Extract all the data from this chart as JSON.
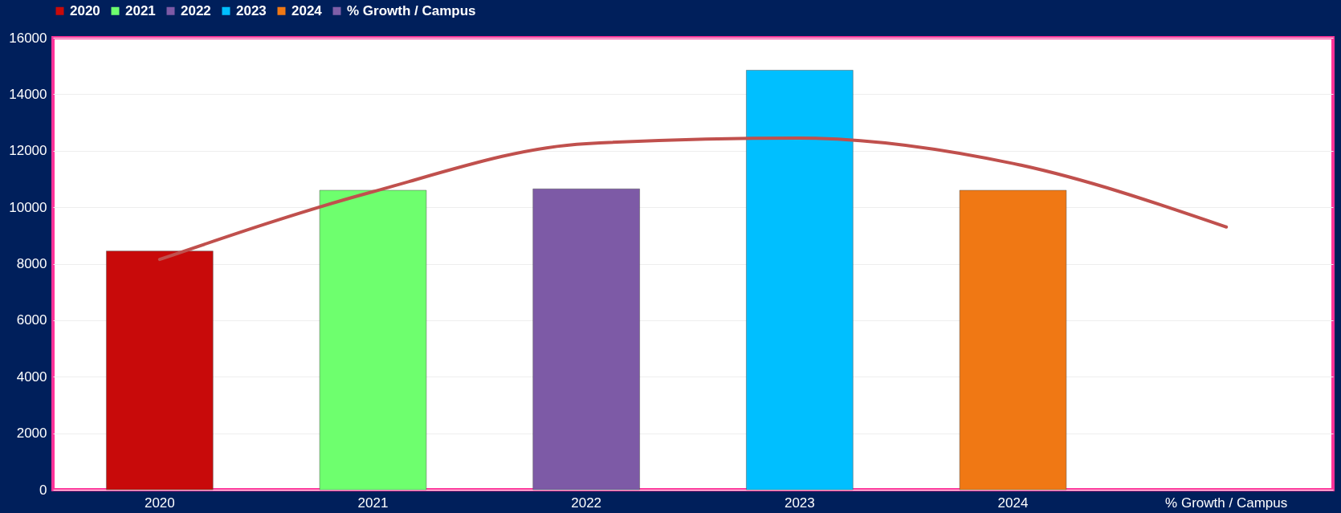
{
  "chart_data": {
    "type": "bar",
    "categories": [
      "2020",
      "2021",
      "2022",
      "2023",
      "2024",
      "% Growth / Campus"
    ],
    "series": [
      {
        "name": "2020",
        "color": "#c80a0a",
        "values": [
          8450,
          null,
          null,
          null,
          null,
          null
        ]
      },
      {
        "name": "2021",
        "color": "#6eff6e",
        "values": [
          null,
          10600,
          null,
          null,
          null,
          null
        ]
      },
      {
        "name": "2022",
        "color": "#7d5aa6",
        "values": [
          null,
          null,
          10650,
          null,
          null,
          null
        ]
      },
      {
        "name": "2023",
        "color": "#00bfff",
        "values": [
          null,
          null,
          null,
          14850,
          null,
          null
        ]
      },
      {
        "name": "2024",
        "color": "#f07814",
        "values": [
          null,
          null,
          null,
          null,
          10600,
          null
        ]
      },
      {
        "name": "% Growth / Campus",
        "color": "#7f5fa8",
        "values": [
          null,
          null,
          null,
          null,
          null,
          null
        ]
      },
      {
        "type": "line",
        "color": "#c0504d",
        "values": [
          8150,
          10550,
          12250,
          12450,
          11550,
          9300
        ]
      }
    ],
    "ylim": [
      0,
      16000
    ],
    "yticks": [
      0,
      2000,
      4000,
      6000,
      8000,
      10000,
      12000,
      14000,
      16000
    ],
    "grid": "y",
    "legend": "top"
  }
}
